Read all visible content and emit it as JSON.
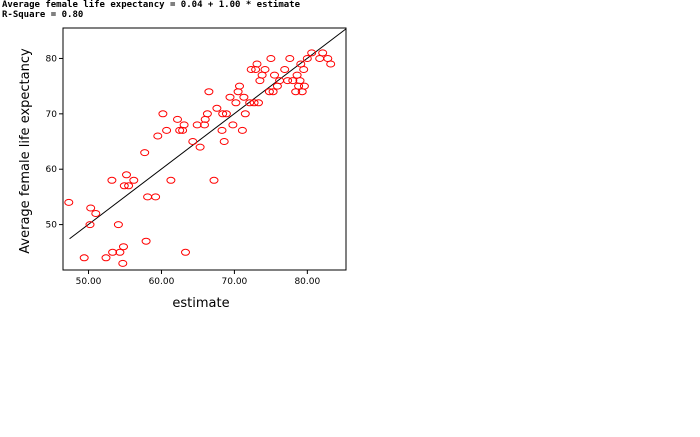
{
  "header": {
    "equation": "Average female life expectancy = 0.04 + 1.00 * estimate",
    "rsquare": "R-Square = 0.80"
  },
  "chart_data": {
    "type": "scatter",
    "title": "",
    "xlabel": "estimate",
    "ylabel": "Average female life expectancy",
    "xlim": [
      46.5,
      85.3
    ],
    "ylim": [
      41.8,
      85.5
    ],
    "xticks": [
      50,
      60,
      70,
      80
    ],
    "xtick_labels": [
      "50.00",
      "60.00",
      "70.00",
      "80.00"
    ],
    "yticks": [
      50,
      60,
      70,
      80
    ],
    "ytick_labels": [
      "50",
      "60",
      "70",
      "80"
    ],
    "grid": false,
    "marker_color": "#ff0000",
    "line_color": "#000000",
    "fit_line": {
      "intercept": 0.04,
      "slope": 1.0,
      "x_range": [
        47.4,
        85.3
      ]
    },
    "points": [
      [
        47.3,
        54
      ],
      [
        49.4,
        44
      ],
      [
        50.2,
        50
      ],
      [
        50.3,
        53
      ],
      [
        51.0,
        52
      ],
      [
        52.4,
        44
      ],
      [
        53.2,
        58
      ],
      [
        53.3,
        45
      ],
      [
        54.1,
        50
      ],
      [
        54.3,
        45
      ],
      [
        54.8,
        46
      ],
      [
        54.7,
        43
      ],
      [
        54.9,
        57
      ],
      [
        55.2,
        59
      ],
      [
        55.5,
        57
      ],
      [
        56.2,
        58
      ],
      [
        57.7,
        63
      ],
      [
        57.9,
        47
      ],
      [
        58.1,
        55
      ],
      [
        59.2,
        55
      ],
      [
        59.5,
        66
      ],
      [
        60.2,
        70
      ],
      [
        60.7,
        67
      ],
      [
        61.3,
        58
      ],
      [
        62.2,
        69
      ],
      [
        62.5,
        67
      ],
      [
        62.9,
        67
      ],
      [
        63.1,
        68
      ],
      [
        63.3,
        45
      ],
      [
        64.3,
        65
      ],
      [
        64.9,
        68
      ],
      [
        65.3,
        64
      ],
      [
        65.9,
        68
      ],
      [
        66.0,
        69
      ],
      [
        66.3,
        70
      ],
      [
        66.5,
        74
      ],
      [
        67.2,
        58
      ],
      [
        67.6,
        71
      ],
      [
        68.3,
        67
      ],
      [
        68.4,
        70
      ],
      [
        68.6,
        65
      ],
      [
        68.9,
        70
      ],
      [
        69.4,
        73
      ],
      [
        69.8,
        68
      ],
      [
        70.2,
        72
      ],
      [
        70.5,
        74
      ],
      [
        70.7,
        75
      ],
      [
        71.1,
        67
      ],
      [
        71.3,
        73
      ],
      [
        71.5,
        70
      ],
      [
        72.1,
        72
      ],
      [
        72.3,
        78
      ],
      [
        72.7,
        72
      ],
      [
        72.9,
        78
      ],
      [
        73.1,
        79
      ],
      [
        73.3,
        72
      ],
      [
        73.5,
        76
      ],
      [
        73.8,
        77
      ],
      [
        74.2,
        78
      ],
      [
        74.8,
        74
      ],
      [
        75.0,
        80
      ],
      [
        75.3,
        74
      ],
      [
        75.5,
        77
      ],
      [
        75.9,
        75
      ],
      [
        76.2,
        76
      ],
      [
        76.9,
        78
      ],
      [
        77.3,
        76
      ],
      [
        77.6,
        80
      ],
      [
        78.0,
        76
      ],
      [
        78.4,
        74
      ],
      [
        78.6,
        77
      ],
      [
        78.8,
        75
      ],
      [
        79.0,
        76
      ],
      [
        79.1,
        79
      ],
      [
        79.3,
        74
      ],
      [
        79.5,
        78
      ],
      [
        79.6,
        75
      ],
      [
        80.0,
        80
      ],
      [
        80.6,
        81
      ],
      [
        81.7,
        80
      ],
      [
        82.1,
        81
      ],
      [
        82.8,
        80
      ],
      [
        83.2,
        79
      ]
    ]
  }
}
